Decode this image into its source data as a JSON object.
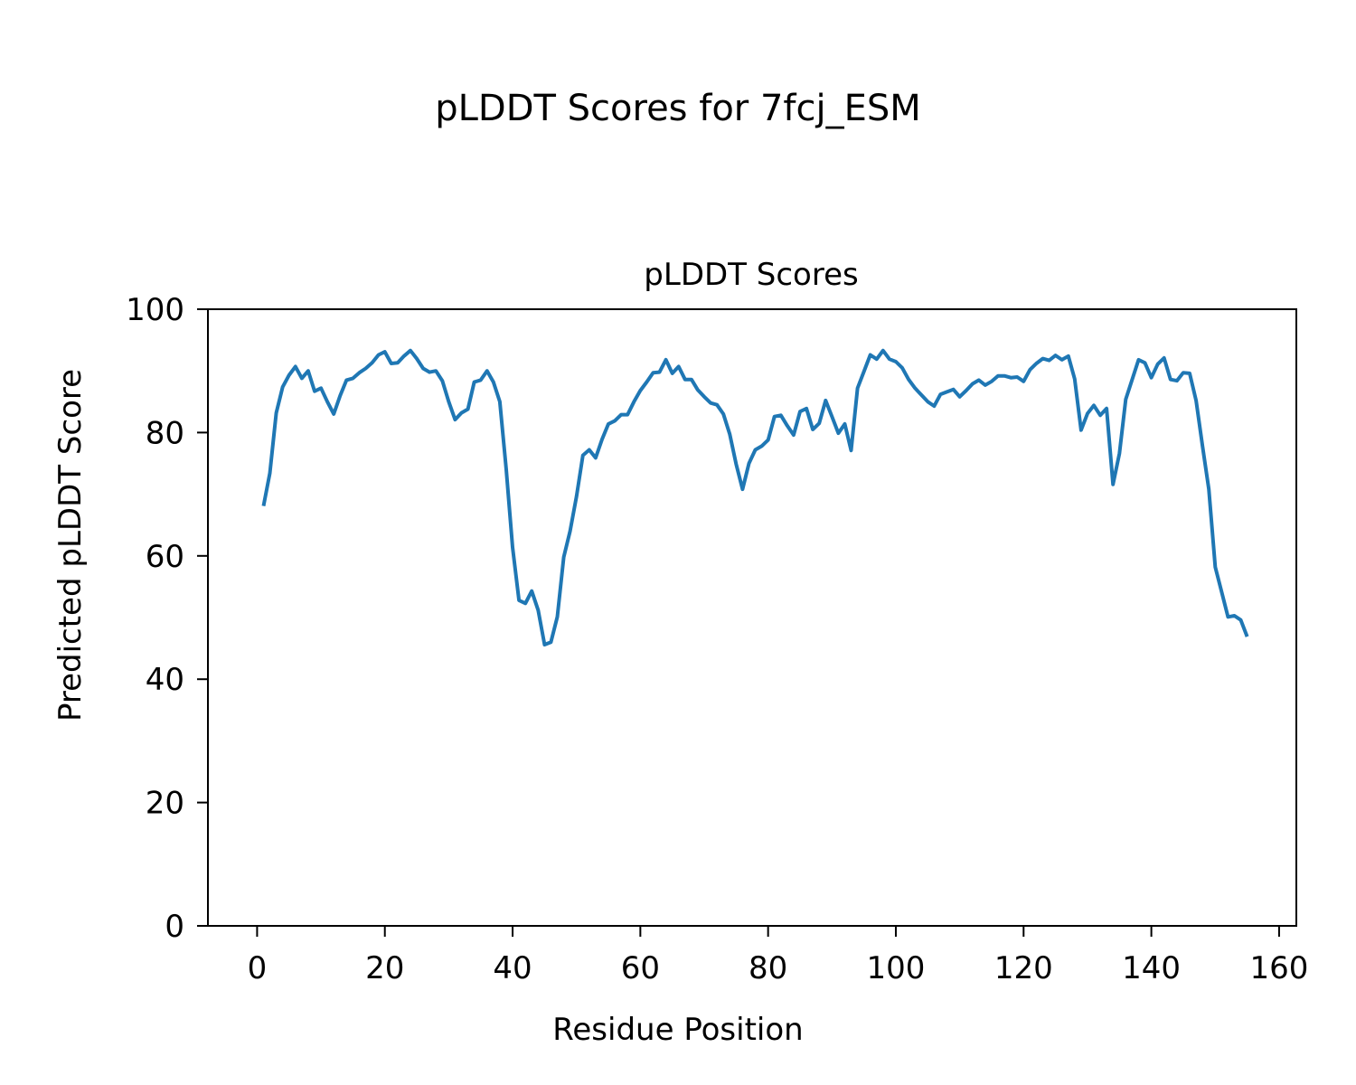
{
  "figure": {
    "suptitle": "pLDDT Scores for 7fcj_ESM"
  },
  "chart_data": {
    "type": "line",
    "title": "pLDDT Scores",
    "xlabel": "Residue Position",
    "ylabel": "Predicted pLDDT Score",
    "xlim": [
      -7.7,
      162.7
    ],
    "ylim": [
      0,
      100
    ],
    "xticks": [
      0,
      20,
      40,
      60,
      80,
      100,
      120,
      140,
      160
    ],
    "yticks": [
      0,
      20,
      40,
      60,
      80,
      100
    ],
    "grid": false,
    "series": [
      {
        "color": "#1f77b4",
        "x": [
          1,
          2,
          3,
          4,
          5,
          6,
          7,
          8,
          9,
          10,
          11,
          12,
          13,
          14,
          15,
          16,
          17,
          18,
          19,
          20,
          21,
          22,
          23,
          24,
          25,
          26,
          27,
          28,
          29,
          30,
          31,
          32,
          33,
          34,
          35,
          36,
          37,
          38,
          39,
          40,
          41,
          42,
          43,
          44,
          45,
          46,
          47,
          48,
          49,
          50,
          51,
          52,
          53,
          54,
          55,
          56,
          57,
          58,
          59,
          60,
          61,
          62,
          63,
          64,
          65,
          66,
          67,
          68,
          69,
          70,
          71,
          72,
          73,
          74,
          75,
          76,
          77,
          78,
          79,
          80,
          81,
          82,
          83,
          84,
          85,
          86,
          87,
          88,
          89,
          90,
          91,
          92,
          93,
          94,
          95,
          96,
          97,
          98,
          99,
          100,
          101,
          102,
          103,
          104,
          105,
          106,
          107,
          108,
          109,
          110,
          111,
          112,
          113,
          114,
          115,
          116,
          117,
          118,
          119,
          120,
          121,
          122,
          123,
          124,
          125,
          126,
          127,
          128,
          129,
          130,
          131,
          132,
          133,
          134,
          135,
          136,
          137,
          138,
          139,
          140,
          141,
          142,
          143,
          144,
          145,
          146,
          147,
          148,
          149,
          150,
          151,
          152,
          153,
          154,
          155
        ],
        "y": [
          68.1,
          73.4,
          83.2,
          87.4,
          89.3,
          90.7,
          88.8,
          90.0,
          86.7,
          87.2,
          85.0,
          83.0,
          86.0,
          88.5,
          88.8,
          89.7,
          90.4,
          91.3,
          92.6,
          93.1,
          91.2,
          91.3,
          92.4,
          93.3,
          92.0,
          90.4,
          89.8,
          90.0,
          88.4,
          85.0,
          82.1,
          83.2,
          83.8,
          88.2,
          88.5,
          90.0,
          88.2,
          85.0,
          74.0,
          61.4,
          52.8,
          52.3,
          54.3,
          51.2,
          45.6,
          46.0,
          50.1,
          59.8,
          64.0,
          69.6,
          76.3,
          77.2,
          75.9,
          78.9,
          81.4,
          81.9,
          82.9,
          82.9,
          85.0,
          86.8,
          88.2,
          89.7,
          89.8,
          91.8,
          89.6,
          90.7,
          88.6,
          88.6,
          86.9,
          85.8,
          84.8,
          84.5,
          83.0,
          79.7,
          74.9,
          70.8,
          75.0,
          77.2,
          77.8,
          78.8,
          82.6,
          82.8,
          81.1,
          79.6,
          83.4,
          83.9,
          80.5,
          81.5,
          85.2,
          82.6,
          79.9,
          81.4,
          77.1,
          87.2,
          89.9,
          92.6,
          91.9,
          93.3,
          91.9,
          91.5,
          90.5,
          88.6,
          87.2,
          86.1,
          85.0,
          84.3,
          86.2,
          86.6,
          87.0,
          85.8,
          86.8,
          87.9,
          88.5,
          87.7,
          88.3,
          89.2,
          89.2,
          88.9,
          89.0,
          88.3,
          90.2,
          91.2,
          92.0,
          91.7,
          92.5,
          91.8,
          92.4,
          88.7,
          80.4,
          83.1,
          84.4,
          82.8,
          83.9,
          71.6,
          76.6,
          85.4,
          88.6,
          91.8,
          91.3,
          88.9,
          91.1,
          92.1,
          88.6,
          88.4,
          89.7,
          89.6,
          85.2,
          77.9,
          70.8,
          58.2,
          54.2,
          50.1,
          50.3,
          49.6,
          46.9
        ]
      }
    ]
  }
}
